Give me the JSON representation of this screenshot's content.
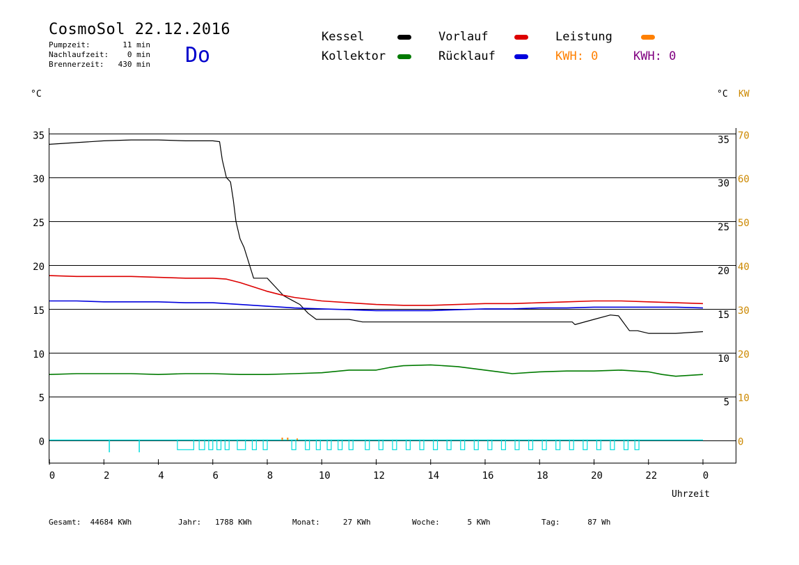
{
  "header": {
    "title": "CosmoSol 22.12.2016",
    "weekday": "Do",
    "stats": [
      {
        "label": "Pumpzeit:",
        "value": "11 min"
      },
      {
        "label": "Nachlaufzeit:",
        "value": "0 min"
      },
      {
        "label": "Brennerzeit:",
        "value": "430 min"
      }
    ]
  },
  "legend": {
    "kessel": "Kessel",
    "kollektor": "Kollektor",
    "vorlauf": "Vorlauf",
    "ruecklauf": "Rücklauf",
    "leistung": "Leistung",
    "kwh_orange": "KWH: 0",
    "kwh_purple": "KWH: 0"
  },
  "axes": {
    "left_unit": "°C",
    "right_unit_c": "°C",
    "right_unit_kw": "KW",
    "x_label": "Uhrzeit"
  },
  "footer": [
    {
      "label": "Gesamt:",
      "value": "44684 KWh"
    },
    {
      "label": "Jahr:",
      "value": "1788 KWh"
    },
    {
      "label": "Monat:",
      "value": "27 KWh"
    },
    {
      "label": "Woche:",
      "value": "5 KWh"
    },
    {
      "label": "Tag:",
      "value": "87 Wh"
    }
  ],
  "colors": {
    "kessel": "#000000",
    "kollektor": "#007a00",
    "vorlauf": "#dd0000",
    "ruecklauf": "#0000dd",
    "leistung": "#ff8000",
    "pump": "#00dddd",
    "kwh_purple": "#800080"
  },
  "chart_data": {
    "type": "line",
    "title": "CosmoSol 22.12.2016",
    "xlabel": "Uhrzeit",
    "ylabel": "°C",
    "y2label": "KW",
    "xlim": [
      0,
      24
    ],
    "ylim": [
      -2.5,
      35.5
    ],
    "x_ticks": [
      "0",
      "2",
      "4",
      "6",
      "8",
      "10",
      "12",
      "14",
      "16",
      "18",
      "20",
      "22",
      "0"
    ],
    "y_ticks_left": [
      0,
      5,
      10,
      15,
      20,
      25,
      30,
      35
    ],
    "y_ticks_right_c": [
      5,
      10,
      15,
      20,
      25,
      30,
      35
    ],
    "y_ticks_right_kw": [
      0,
      10,
      20,
      30,
      40,
      50,
      60,
      70
    ],
    "grid": true,
    "series": [
      {
        "name": "Kessel",
        "color": "#000000",
        "x": [
          0,
          1,
          2,
          3,
          4,
          5,
          6,
          6.25,
          6.35,
          6.5,
          6.65,
          6.75,
          6.85,
          7.0,
          7.15,
          7.3,
          7.5,
          8.0,
          8.3,
          8.6,
          8.9,
          9.2,
          9.5,
          9.8,
          10.5,
          11.0,
          11.5,
          19.2,
          19.3,
          20.0,
          20.6,
          20.9,
          21.3,
          21.6,
          22.0,
          23.0,
          24.0
        ],
        "y": [
          33.8,
          34.0,
          34.2,
          34.3,
          34.3,
          34.2,
          34.2,
          34.1,
          32.0,
          30.0,
          29.5,
          27.5,
          25.0,
          23.0,
          22.0,
          20.5,
          18.5,
          18.5,
          17.5,
          16.5,
          16.0,
          15.5,
          14.5,
          13.8,
          13.8,
          13.8,
          13.5,
          13.5,
          13.2,
          13.8,
          14.3,
          14.2,
          12.5,
          12.5,
          12.2,
          12.2,
          12.4
        ]
      },
      {
        "name": "Vorlauf",
        "color": "#dd0000",
        "x": [
          0,
          1,
          2,
          3,
          4,
          5,
          6,
          6.5,
          7,
          7.5,
          8,
          8.5,
          9,
          9.5,
          10,
          11,
          12,
          13,
          14,
          15,
          16,
          17,
          18,
          19,
          20,
          21,
          22,
          23,
          24
        ],
        "y": [
          18.8,
          18.7,
          18.7,
          18.7,
          18.6,
          18.5,
          18.5,
          18.4,
          18.0,
          17.5,
          17.0,
          16.6,
          16.3,
          16.1,
          15.9,
          15.7,
          15.5,
          15.4,
          15.4,
          15.5,
          15.6,
          15.6,
          15.7,
          15.8,
          15.9,
          15.9,
          15.8,
          15.7,
          15.6
        ]
      },
      {
        "name": "Rücklauf",
        "color": "#0000dd",
        "x": [
          0,
          1,
          2,
          3,
          4,
          5,
          6,
          6.5,
          7,
          8,
          9,
          10,
          11,
          12,
          13,
          14,
          15,
          16,
          17,
          18,
          19,
          20,
          21,
          22,
          23,
          24
        ],
        "y": [
          15.9,
          15.9,
          15.8,
          15.8,
          15.8,
          15.7,
          15.7,
          15.6,
          15.5,
          15.3,
          15.1,
          15.0,
          14.9,
          14.8,
          14.8,
          14.8,
          14.9,
          15.0,
          15.0,
          15.1,
          15.1,
          15.2,
          15.2,
          15.2,
          15.2,
          15.1
        ]
      },
      {
        "name": "Kollektor",
        "color": "#007a00",
        "x": [
          0,
          1,
          2,
          3,
          4,
          5,
          6,
          7,
          8,
          9,
          10,
          11,
          12,
          12.5,
          13,
          14,
          15,
          16,
          16.5,
          17,
          18,
          19,
          20,
          21,
          22,
          22.5,
          23,
          24
        ],
        "y": [
          7.5,
          7.6,
          7.6,
          7.6,
          7.5,
          7.6,
          7.6,
          7.5,
          7.5,
          7.6,
          7.7,
          8.0,
          8.0,
          8.3,
          8.5,
          8.6,
          8.4,
          8.0,
          7.8,
          7.6,
          7.8,
          7.9,
          7.9,
          8.0,
          7.8,
          7.5,
          7.3,
          7.5
        ]
      }
    ],
    "pump_activity": {
      "name": "Pumpe",
      "color": "#00dddd",
      "baseline": 0,
      "events": [
        {
          "t": 2.2,
          "w": 0.02,
          "h": 1.4
        },
        {
          "t": 3.3,
          "w": 0.02,
          "h": 1.4
        },
        {
          "t": 4.7,
          "w": 0.6,
          "h": 1.1
        },
        {
          "t": 5.5,
          "w": 0.2,
          "h": 1.1
        },
        {
          "t": 5.85,
          "w": 0.15,
          "h": 1.1
        },
        {
          "t": 6.15,
          "w": 0.15,
          "h": 1.1
        },
        {
          "t": 6.45,
          "w": 0.15,
          "h": 1.1
        },
        {
          "t": 6.9,
          "w": 0.3,
          "h": 1.1
        },
        {
          "t": 7.45,
          "w": 0.15,
          "h": 1.1
        },
        {
          "t": 7.85,
          "w": 0.15,
          "h": 1.1
        },
        {
          "t": 8.9,
          "w": 0.15,
          "h": 1.1
        },
        {
          "t": 9.4,
          "w": 0.15,
          "h": 1.1
        },
        {
          "t": 9.8,
          "w": 0.15,
          "h": 1.1
        },
        {
          "t": 10.2,
          "w": 0.15,
          "h": 1.1
        },
        {
          "t": 10.6,
          "w": 0.15,
          "h": 1.1
        },
        {
          "t": 11.0,
          "w": 0.15,
          "h": 1.1
        },
        {
          "t": 11.6,
          "w": 0.15,
          "h": 1.1
        },
        {
          "t": 12.1,
          "w": 0.15,
          "h": 1.1
        },
        {
          "t": 12.6,
          "w": 0.15,
          "h": 1.1
        },
        {
          "t": 13.1,
          "w": 0.15,
          "h": 1.1
        },
        {
          "t": 13.6,
          "w": 0.15,
          "h": 1.1
        },
        {
          "t": 14.1,
          "w": 0.15,
          "h": 1.1
        },
        {
          "t": 14.6,
          "w": 0.15,
          "h": 1.1
        },
        {
          "t": 15.1,
          "w": 0.15,
          "h": 1.1
        },
        {
          "t": 15.6,
          "w": 0.15,
          "h": 1.1
        },
        {
          "t": 16.1,
          "w": 0.15,
          "h": 1.1
        },
        {
          "t": 16.6,
          "w": 0.15,
          "h": 1.1
        },
        {
          "t": 17.1,
          "w": 0.15,
          "h": 1.1
        },
        {
          "t": 17.6,
          "w": 0.15,
          "h": 1.1
        },
        {
          "t": 18.1,
          "w": 0.15,
          "h": 1.1
        },
        {
          "t": 18.6,
          "w": 0.15,
          "h": 1.1
        },
        {
          "t": 19.1,
          "w": 0.15,
          "h": 1.1
        },
        {
          "t": 19.6,
          "w": 0.15,
          "h": 1.1
        },
        {
          "t": 20.1,
          "w": 0.15,
          "h": 1.1
        },
        {
          "t": 20.6,
          "w": 0.15,
          "h": 1.1
        },
        {
          "t": 21.1,
          "w": 0.15,
          "h": 1.1
        },
        {
          "t": 21.5,
          "w": 0.15,
          "h": 1.1
        }
      ]
    },
    "leistung_spikes": [
      {
        "t": 8.55,
        "kw": 0.6
      },
      {
        "t": 8.75,
        "kw": 0.6
      },
      {
        "t": 9.1,
        "kw": 0.4
      }
    ]
  }
}
